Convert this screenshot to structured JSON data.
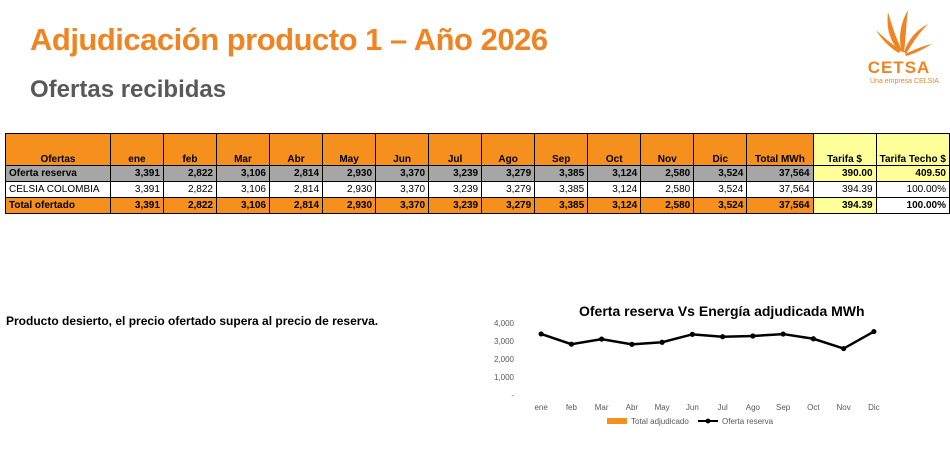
{
  "header": {
    "title": "Adjudicación  producto 1 – Año 2026",
    "subtitle": "Ofertas recibidas"
  },
  "logo": {
    "name": "CETSA",
    "tagline": "Una empresa CELSIA",
    "color": "#ee8422"
  },
  "table": {
    "columns": [
      "Ofertas",
      "ene",
      "feb",
      "Mar",
      "Abr",
      "May",
      "Jun",
      "Jul",
      "Ago",
      "Sep",
      "Oct",
      "Nov",
      "Dic",
      "Total MWh",
      "Tarifa $",
      "Tarifa Techo $"
    ],
    "rows": [
      [
        "Oferta reserva",
        "3,391",
        "2,822",
        "3,106",
        "2,814",
        "2,930",
        "3,370",
        "3,239",
        "3,279",
        "3,385",
        "3,124",
        "2,580",
        "3,524",
        "37,564",
        "390.00",
        "409.50"
      ],
      [
        "CELSIA COLOMBIA",
        "3,391",
        "2,822",
        "3,106",
        "2,814",
        "2,930",
        "3,370",
        "3,239",
        "3,279",
        "3,385",
        "3,124",
        "2,580",
        "3,524",
        "37,564",
        "394.39",
        "100.00%"
      ],
      [
        "Total ofertado",
        "3,391",
        "2,822",
        "3,106",
        "2,814",
        "2,930",
        "3,370",
        "3,239",
        "3,279",
        "3,385",
        "3,124",
        "2,580",
        "3,524",
        "37,564",
        "394.39",
        "100.00%"
      ]
    ]
  },
  "note": "Producto desierto, el precio ofertado supera al precio de reserva.",
  "chart_data": {
    "type": "line",
    "title": "Oferta reserva Vs Energía adjudicada MWh",
    "categories": [
      "ene",
      "feb",
      "Mar",
      "Abr",
      "May",
      "Jun",
      "Jul",
      "Ago",
      "Sep",
      "Oct",
      "Nov",
      "Dic"
    ],
    "series": [
      {
        "name": "Total adjudicado",
        "type": "bar",
        "values": [
          0,
          0,
          0,
          0,
          0,
          0,
          0,
          0,
          0,
          0,
          0,
          0
        ],
        "color": "#f5901e"
      },
      {
        "name": "Oferta reserva",
        "type": "line",
        "values": [
          3391,
          2822,
          3106,
          2814,
          2930,
          3370,
          3239,
          3279,
          3385,
          3124,
          2580,
          3524
        ],
        "color": "#000000"
      }
    ],
    "ylim": [
      0,
      4000
    ],
    "yticks": [
      "4,000",
      "3,000",
      "2,000",
      "1,000",
      "-"
    ],
    "legend": "bottom",
    "grid": false
  }
}
